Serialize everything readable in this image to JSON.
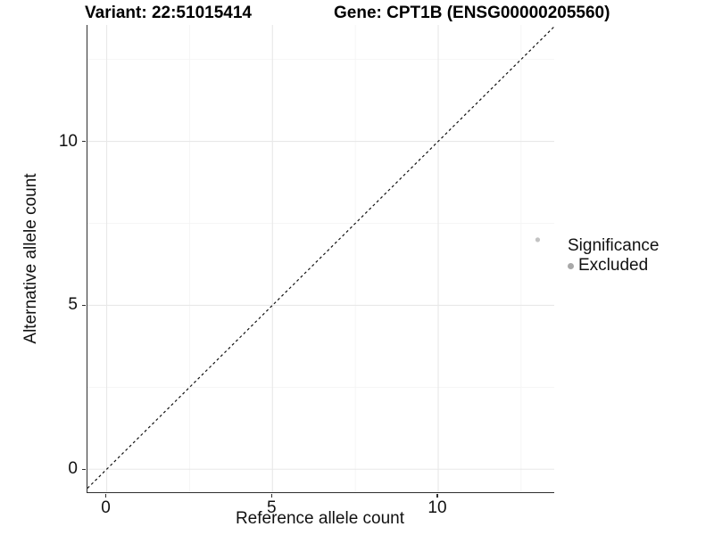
{
  "figure": {
    "title_left": "Variant: 22:51015414",
    "title_right": "Gene: CPT1B (ENSG00000205560)"
  },
  "chart_data": {
    "type": "scatter",
    "title_left": "Variant: 22:51015414",
    "title_right": "Gene: CPT1B (ENSG00000205560)",
    "xlabel": "Reference allele count",
    "ylabel": "Alternative allele count",
    "xlim": [
      -0.58,
      13.5
    ],
    "ylim": [
      -0.7,
      13.55
    ],
    "x_ticks": [
      0,
      5,
      10
    ],
    "y_ticks": [
      0,
      5,
      10
    ],
    "x_minor_gridlines": [
      2.5,
      7.5,
      12.5
    ],
    "y_minor_gridlines": [
      2.5,
      7.5,
      12.5
    ],
    "grid": true,
    "identity_line": {
      "slope": 1,
      "intercept": 0,
      "style": "dashed",
      "color": "#111111"
    },
    "series": [
      {
        "name": "Excluded",
        "color": "#c3c3c3",
        "points": [
          {
            "x": 13,
            "y": 7
          }
        ]
      }
    ],
    "legend": {
      "position": "right",
      "title": "Significance",
      "items": [
        {
          "label": "Excluded",
          "color": "#a8a8a8",
          "marker": "circle"
        }
      ]
    },
    "colors": {
      "axis_line": "#2e2e2e",
      "major_grid": "#e8e8e8",
      "minor_grid": "#f4f4f4",
      "background": "#ffffff"
    }
  }
}
